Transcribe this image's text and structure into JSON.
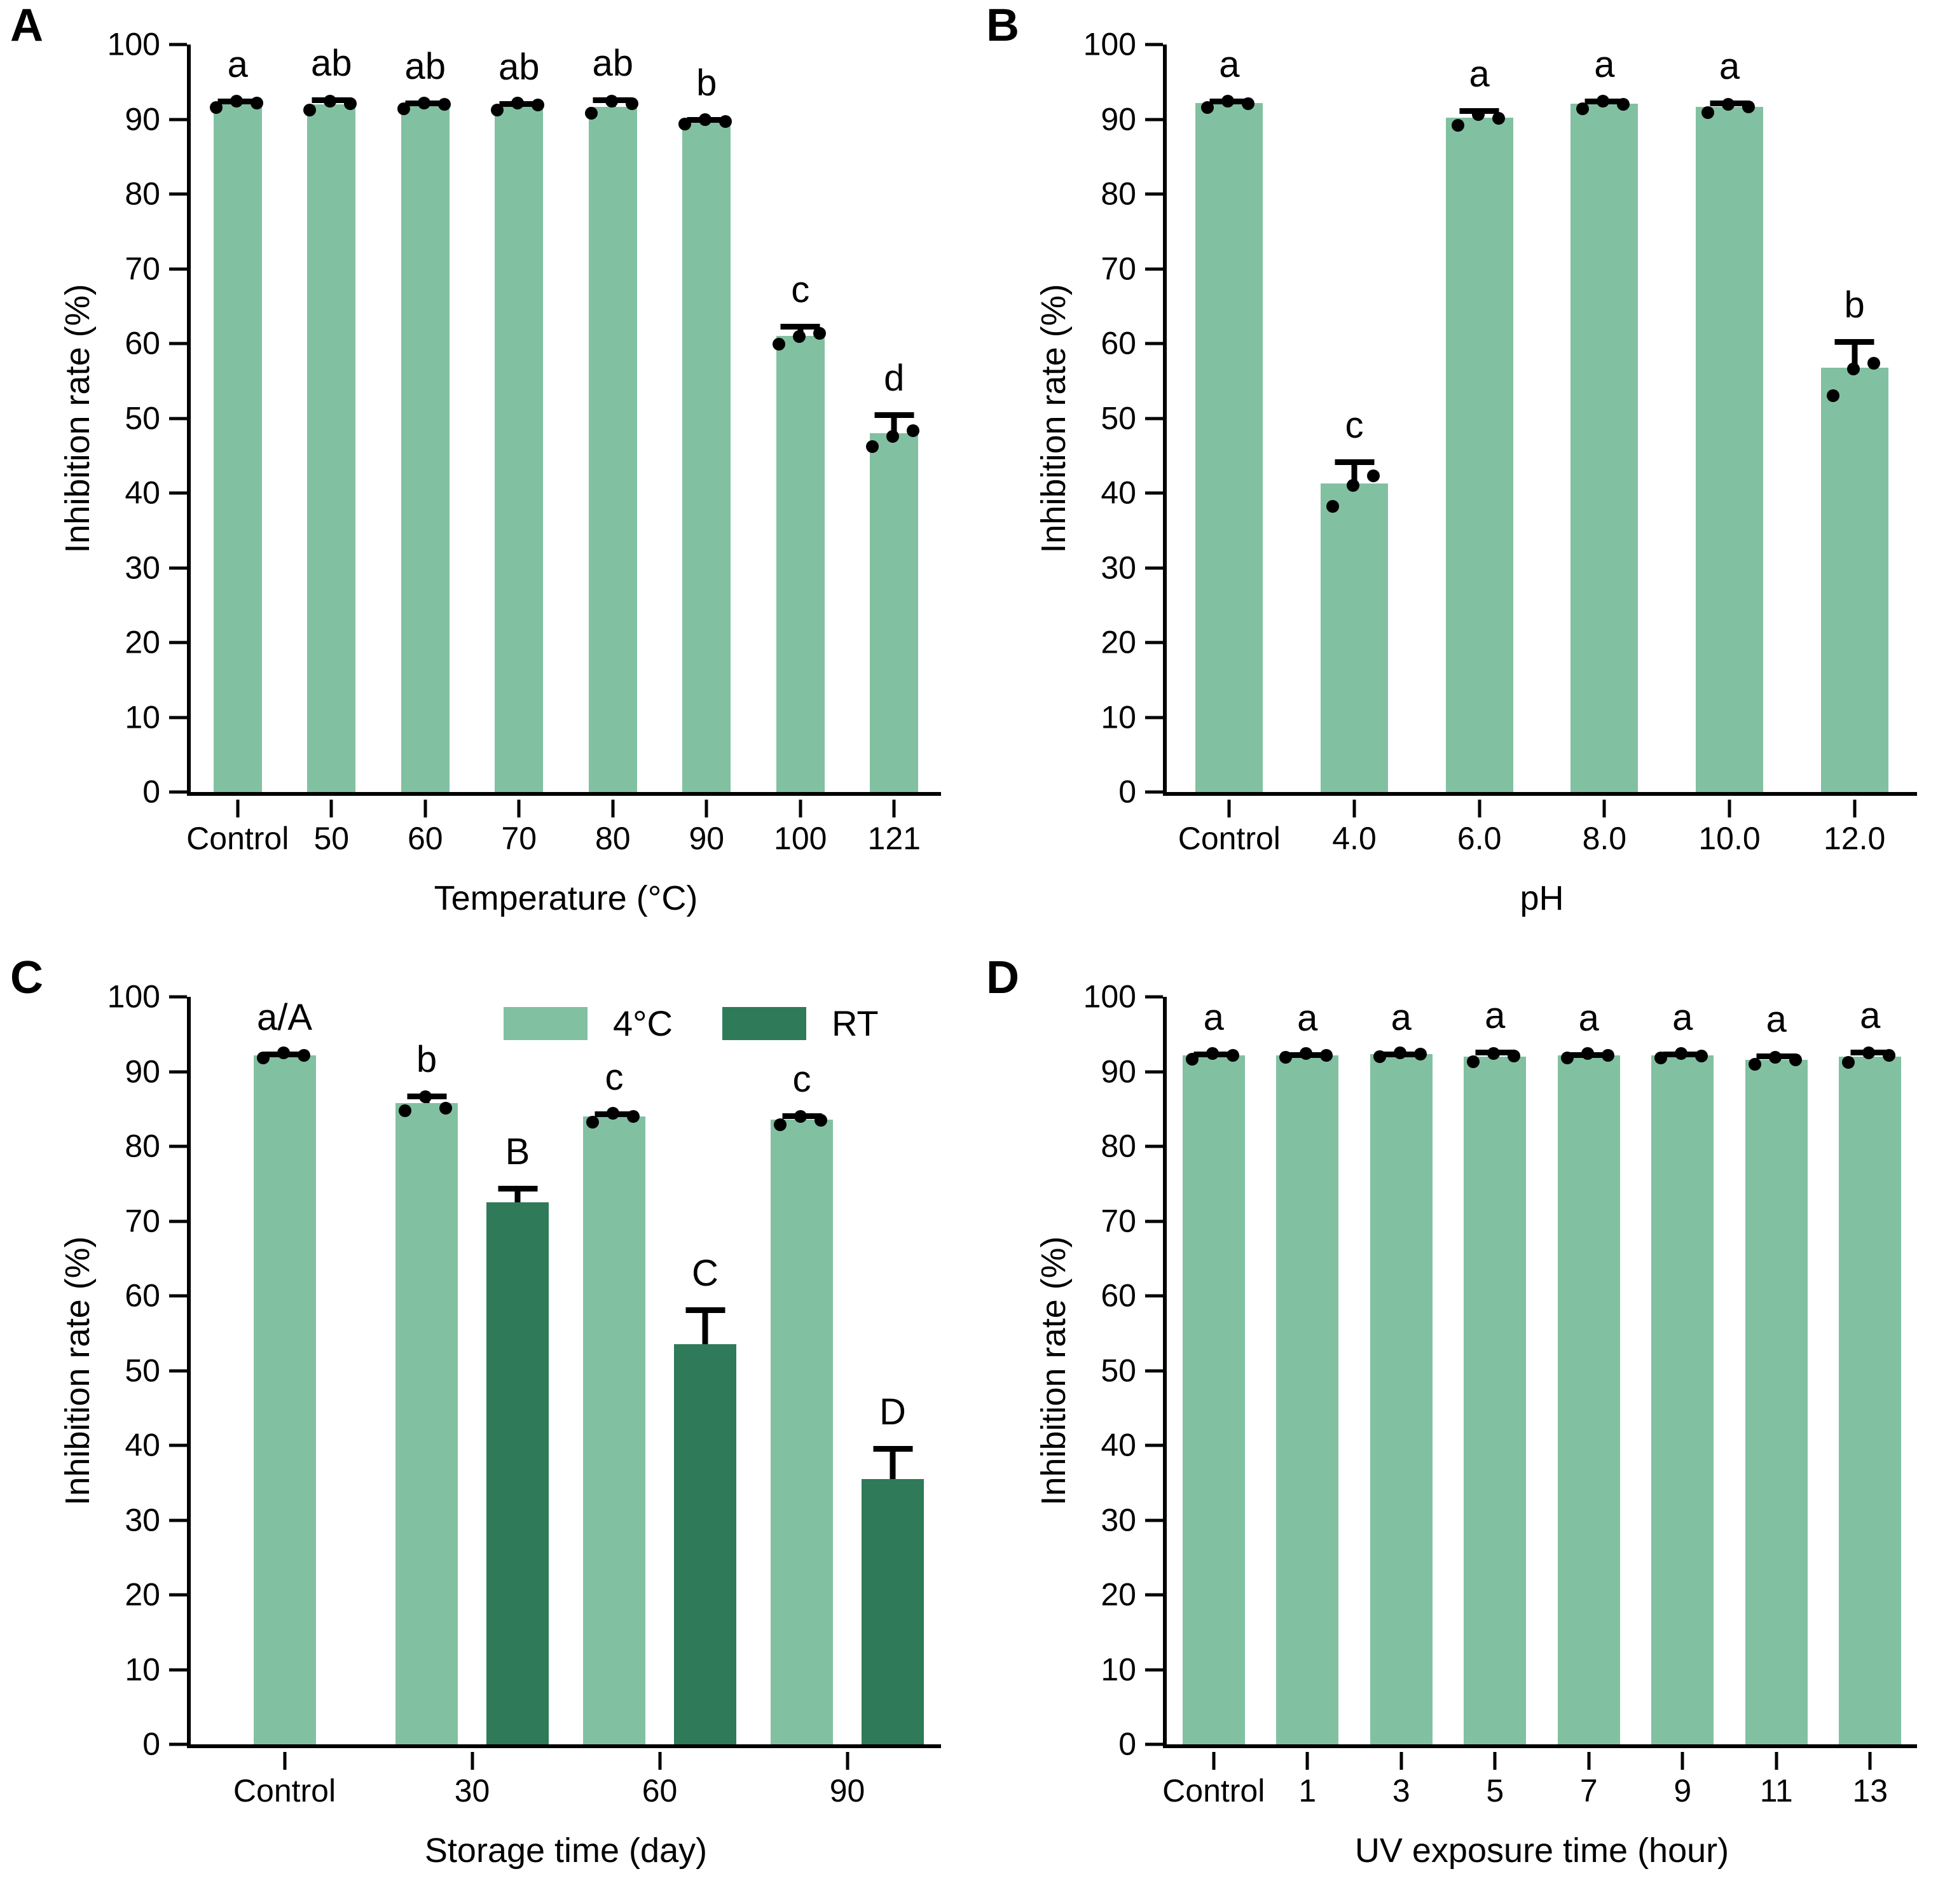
{
  "figure": {
    "background": "#ffffff",
    "colors": {
      "bar_light": "#82c0a2",
      "bar_dark": "#2f7a58",
      "axis": "#000000",
      "dot": "#000000"
    },
    "legend": {
      "panel": "C",
      "position": "top-inside",
      "items": [
        {
          "label": "4°C",
          "color_key": "bar_light"
        },
        {
          "label": "RT",
          "color_key": "bar_dark"
        }
      ]
    }
  },
  "chart_data": [
    {
      "type": "bar",
      "panel_label": "A",
      "xlabel": "Temperature (°C)",
      "ylabel": "Inhibition rate (%)",
      "ylim": [
        0,
        100
      ],
      "ystep": 10,
      "grid": false,
      "categories": [
        "Control",
        "50",
        "60",
        "70",
        "80",
        "90",
        "100",
        "121"
      ],
      "series": [
        {
          "name": "",
          "color_key": "bar_light",
          "values": [
            92.2,
            92.0,
            91.9,
            91.8,
            91.7,
            89.8,
            61.0,
            48.0
          ],
          "errors": [
            0.6,
            0.9,
            0.6,
            0.6,
            1.2,
            0.5,
            1.6,
            2.8
          ],
          "sig_letters": [
            "a",
            "ab",
            "ab",
            "ab",
            "ab",
            "b",
            "c",
            "d"
          ],
          "points": [
            [
              91.6,
              92.4,
              92.2
            ],
            [
              91.2,
              92.4,
              92.1
            ],
            [
              91.4,
              92.2,
              92.0
            ],
            [
              91.2,
              92.2,
              91.9
            ],
            [
              90.8,
              92.4,
              92.1
            ],
            [
              89.4,
              90.0,
              89.7
            ],
            [
              59.9,
              60.9,
              61.4
            ],
            [
              46.2,
              47.6,
              48.3
            ]
          ]
        }
      ]
    },
    {
      "type": "bar",
      "panel_label": "B",
      "xlabel": "pH",
      "ylabel": "Inhibition rate (%)",
      "ylim": [
        0,
        100
      ],
      "ystep": 10,
      "grid": false,
      "categories": [
        "Control",
        "4.0",
        "6.0",
        "8.0",
        "10.0",
        "12.0"
      ],
      "series": [
        {
          "name": "",
          "color_key": "bar_light",
          "values": [
            92.2,
            41.3,
            90.2,
            92.1,
            91.7,
            56.8
          ],
          "errors": [
            0.6,
            3.2,
            1.3,
            0.7,
            0.8,
            3.8
          ],
          "sig_letters": [
            "a",
            "c",
            "a",
            "a",
            "a",
            "b"
          ],
          "points": [
            [
              91.6,
              92.4,
              92.1
            ],
            [
              38.2,
              41.0,
              42.3
            ],
            [
              89.2,
              90.6,
              90.1
            ],
            [
              91.4,
              92.4,
              92.0
            ],
            [
              90.9,
              92.0,
              91.7
            ],
            [
              53.0,
              56.6,
              57.4
            ]
          ]
        }
      ]
    },
    {
      "type": "bar",
      "panel_label": "C",
      "xlabel": "Storage time (day)",
      "ylabel": "Inhibition rate (%)",
      "ylim": [
        0,
        100
      ],
      "ystep": 10,
      "grid": false,
      "legend": true,
      "categories": [
        "Control",
        "30",
        "60",
        "90"
      ],
      "series": [
        {
          "name": "4°C",
          "color_key": "bar_light",
          "values": [
            92.2,
            85.8,
            84.0,
            83.6
          ],
          "errors": [
            0.5,
            1.3,
            0.7,
            0.8
          ],
          "sig_letters": [
            "a/A",
            "b",
            "c",
            "c"
          ],
          "points": [
            [
              91.8,
              92.5,
              92.2
            ],
            [
              84.8,
              86.6,
              85.1
            ],
            [
              83.2,
              84.4,
              84.0
            ],
            [
              82.9,
              84.0,
              83.5
            ]
          ]
        },
        {
          "name": "RT",
          "color_key": "bar_dark",
          "values": [
            null,
            72.5,
            53.5,
            35.5
          ],
          "errors": [
            null,
            2.2,
            5.0,
            4.4
          ],
          "sig_letters": [
            null,
            "B",
            "C",
            "D"
          ],
          "points": [
            [],
            [],
            [],
            []
          ]
        }
      ]
    },
    {
      "type": "bar",
      "panel_label": "D",
      "xlabel": "UV exposure time (hour)",
      "ylabel": "Inhibition rate (%)",
      "ylim": [
        0,
        100
      ],
      "ystep": 10,
      "grid": false,
      "categories": [
        "Control",
        "1",
        "3",
        "5",
        "7",
        "9",
        "11",
        "13"
      ],
      "series": [
        {
          "name": "",
          "color_key": "bar_light",
          "values": [
            92.2,
            92.2,
            92.3,
            92.0,
            92.2,
            92.2,
            91.6,
            92.0
          ],
          "errors": [
            0.5,
            0.4,
            0.4,
            0.9,
            0.4,
            0.5,
            0.8,
            0.9
          ],
          "sig_letters": [
            "a",
            "a",
            "a",
            "a",
            "a",
            "a",
            "a",
            "a"
          ],
          "points": [
            [
              91.7,
              92.4,
              92.2
            ],
            [
              91.9,
              92.4,
              92.2
            ],
            [
              92.0,
              92.5,
              92.3
            ],
            [
              91.3,
              92.4,
              92.1
            ],
            [
              91.8,
              92.4,
              92.2
            ],
            [
              91.8,
              92.4,
              92.1
            ],
            [
              91.0,
              91.9,
              91.6
            ],
            [
              91.2,
              92.5,
              92.2
            ]
          ]
        }
      ]
    }
  ]
}
